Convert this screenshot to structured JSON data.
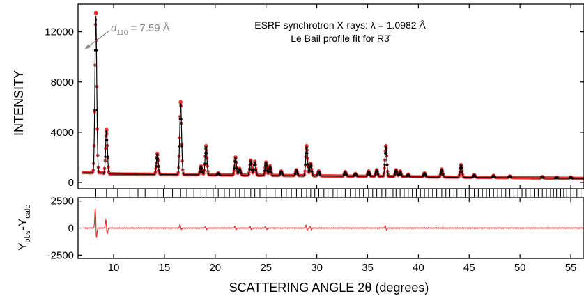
{
  "chart_data": {
    "type": "line",
    "title": "ESRF synchrotron X-rays: λ = 1.0982 Å",
    "subtitle": "Le Bail profile fit for R3̄",
    "annotation": {
      "prefix": "d",
      "subscript": "110",
      "suffix": " = 7.59 Å",
      "x": 8.3,
      "y": 12800
    },
    "xlabel": "SCATTERING ANGLE 2θ (degrees)",
    "xlim": [
      6.5,
      56.3
    ],
    "xticks": [
      10,
      15,
      20,
      25,
      30,
      35,
      40,
      45,
      50,
      55
    ],
    "xtick_labels": [
      "10",
      "15",
      "20",
      "25",
      "30",
      "35",
      "40",
      "45",
      "50",
      "55"
    ],
    "main_panel": {
      "ylabel": "INTENSITY",
      "ylim": [
        -500,
        14200
      ],
      "yticks": [
        0,
        4000,
        8000,
        12000
      ],
      "ytick_labels": [
        "0",
        "4000",
        "8000",
        "12000"
      ],
      "background": 700,
      "peaks": [
        {
          "x": 8.25,
          "y": 13500
        },
        {
          "x": 9.3,
          "y": 4200
        },
        {
          "x": 14.3,
          "y": 2300
        },
        {
          "x": 16.6,
          "y": 6400
        },
        {
          "x": 18.6,
          "y": 1300
        },
        {
          "x": 19.1,
          "y": 2900
        },
        {
          "x": 20.3,
          "y": 750
        },
        {
          "x": 22.0,
          "y": 2000
        },
        {
          "x": 22.4,
          "y": 1100
        },
        {
          "x": 23.5,
          "y": 1750
        },
        {
          "x": 23.9,
          "y": 1650
        },
        {
          "x": 25.0,
          "y": 1600
        },
        {
          "x": 25.4,
          "y": 1300
        },
        {
          "x": 26.5,
          "y": 900
        },
        {
          "x": 28.0,
          "y": 1000
        },
        {
          "x": 29.0,
          "y": 2900
        },
        {
          "x": 29.4,
          "y": 1500
        },
        {
          "x": 30.2,
          "y": 900
        },
        {
          "x": 32.8,
          "y": 850
        },
        {
          "x": 33.8,
          "y": 700
        },
        {
          "x": 35.1,
          "y": 900
        },
        {
          "x": 35.9,
          "y": 1000
        },
        {
          "x": 36.8,
          "y": 2900
        },
        {
          "x": 37.8,
          "y": 1000
        },
        {
          "x": 38.2,
          "y": 900
        },
        {
          "x": 39.0,
          "y": 650
        },
        {
          "x": 40.6,
          "y": 750
        },
        {
          "x": 42.3,
          "y": 1050
        },
        {
          "x": 44.2,
          "y": 1400
        },
        {
          "x": 45.5,
          "y": 600
        },
        {
          "x": 47.4,
          "y": 550
        },
        {
          "x": 49.0,
          "y": 500
        },
        {
          "x": 52.2,
          "y": 450
        },
        {
          "x": 53.6,
          "y": 400
        },
        {
          "x": 55.0,
          "y": 420
        }
      ],
      "series": [
        {
          "name": "",
          "color": "#e8312f",
          "style": "dots"
        },
        {
          "name": "",
          "color": "#000000",
          "style": "line"
        }
      ]
    },
    "reflection_ticks": [
      8.25,
      9.3,
      10.4,
      11.6,
      12.4,
      13.1,
      14.3,
      14.9,
      15.8,
      16.6,
      17.2,
      17.9,
      18.6,
      19.1,
      19.8,
      20.3,
      20.9,
      21.4,
      22.0,
      22.4,
      22.9,
      23.5,
      23.9,
      24.4,
      25.0,
      25.4,
      25.9,
      26.5,
      27.0,
      27.5,
      28.0,
      28.5,
      29.0,
      29.4,
      29.8,
      30.2,
      30.7,
      31.1,
      31.6,
      32.0,
      32.4,
      32.8,
      33.3,
      33.8,
      34.2,
      34.6,
      35.1,
      35.5,
      35.9,
      36.4,
      36.8,
      37.2,
      37.5,
      37.8,
      38.2,
      38.6,
      39.0,
      39.4,
      39.8,
      40.2,
      40.6,
      41.0,
      41.4,
      41.8,
      42.3,
      42.7,
      43.1,
      43.5,
      43.8,
      44.2,
      44.6,
      45.0,
      45.5,
      45.9,
      46.3,
      46.7,
      47.0,
      47.4,
      47.8,
      48.2,
      48.6,
      49.0,
      49.4,
      49.8,
      50.2,
      50.6,
      51.0,
      51.4,
      51.8,
      52.2,
      52.6,
      53.0,
      53.3,
      53.6,
      54.0,
      54.3,
      54.6,
      55.0,
      55.3,
      55.6,
      56.0
    ],
    "difference_panel": {
      "ylabel_main": "Y",
      "ylabel_sub1": "obs",
      "ylabel_mid": "-Y",
      "ylabel_sub2": "calc",
      "ylim": [
        -2800,
        2800
      ],
      "yticks": [
        -2500,
        0,
        2500
      ],
      "ytick_labels": [
        "-2500",
        "0",
        "2500"
      ],
      "features": [
        {
          "x": 8.25,
          "max": 2000,
          "min": -1200
        },
        {
          "x": 9.3,
          "max": 900,
          "min": -700
        },
        {
          "x": 16.6,
          "max": 350,
          "min": -200
        },
        {
          "x": 19.1,
          "max": 150,
          "min": -150
        },
        {
          "x": 22.0,
          "max": 180,
          "min": -180
        },
        {
          "x": 23.5,
          "max": 160,
          "min": -160
        },
        {
          "x": 25.0,
          "max": 160,
          "min": -150
        },
        {
          "x": 29.0,
          "max": 300,
          "min": -250
        },
        {
          "x": 29.4,
          "max": 200,
          "min": -200
        },
        {
          "x": 36.8,
          "max": 250,
          "min": -220
        }
      ],
      "color": "#e8312f"
    }
  }
}
